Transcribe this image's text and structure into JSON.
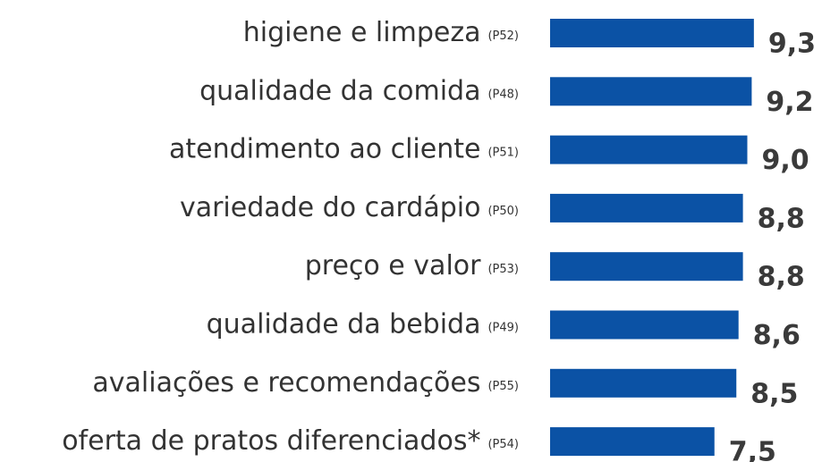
{
  "chart_data": {
    "type": "bar",
    "orientation": "horizontal",
    "categories": [
      "higiene e limpeza",
      "qualidade da comida",
      "atendimento ao cliente",
      "variedade do cardápio",
      "preço e valor",
      "qualidade da bebida",
      "avaliações e recomendações",
      "oferta de pratos diferenciados*"
    ],
    "codes": [
      "(P52)",
      "(P48)",
      "(P51)",
      "(P50)",
      "(P53)",
      "(P49)",
      "(P55)",
      "(P54)"
    ],
    "values": [
      9.3,
      9.2,
      9.0,
      8.8,
      8.8,
      8.6,
      8.5,
      7.5
    ],
    "value_labels": [
      "9,3",
      "9,2",
      "9,0",
      "8,8",
      "8,8",
      "8,6",
      "8,5",
      "7,5"
    ],
    "color": "#0b52a5",
    "xlim": [
      0,
      10
    ]
  }
}
